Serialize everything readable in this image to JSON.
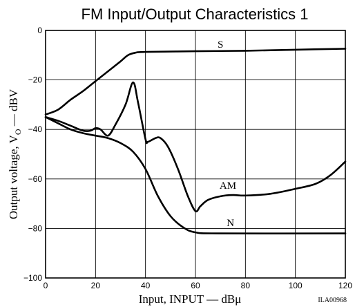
{
  "chart_data": {
    "type": "line",
    "title": "FM Input/Output Characteristics 1",
    "xlabel": "Input, INPUT — dBμ",
    "ylabel_main": "Output voltage, V",
    "ylabel_sub": "O",
    "ylabel_unit": " — dBV",
    "xlim": [
      0,
      120
    ],
    "ylim": [
      -100,
      0
    ],
    "x_ticks": [
      0,
      20,
      40,
      60,
      80,
      100,
      120
    ],
    "y_ticks": [
      0,
      -20,
      -40,
      -60,
      -80,
      -100
    ],
    "x_tick_labels": [
      "0",
      "20",
      "40",
      "60",
      "80",
      "100",
      "120"
    ],
    "y_tick_labels": [
      "0",
      "−20",
      "−40",
      "−60",
      "−80",
      "−100"
    ],
    "grid": true,
    "figure_id": "ILA00968",
    "series": [
      {
        "name": "S",
        "label_at": [
          70,
          -7
        ],
        "points": [
          [
            0,
            -34
          ],
          [
            5,
            -32
          ],
          [
            10,
            -28
          ],
          [
            15,
            -24.5
          ],
          [
            20,
            -20.5
          ],
          [
            25,
            -16.5
          ],
          [
            30,
            -12.5
          ],
          [
            33,
            -10
          ],
          [
            36,
            -9
          ],
          [
            40,
            -8.7
          ],
          [
            60,
            -8.4
          ],
          [
            80,
            -8.2
          ],
          [
            100,
            -7.8
          ],
          [
            120,
            -7.4
          ]
        ]
      },
      {
        "name": "AM",
        "label_at": [
          73,
          -64
        ],
        "points": [
          [
            0,
            -35
          ],
          [
            5,
            -36.5
          ],
          [
            10,
            -38.5
          ],
          [
            15,
            -40.5
          ],
          [
            18,
            -40.5
          ],
          [
            20,
            -39.5
          ],
          [
            22,
            -40
          ],
          [
            25,
            -42.5
          ],
          [
            28,
            -38
          ],
          [
            32,
            -30
          ],
          [
            35,
            -21
          ],
          [
            37,
            -29
          ],
          [
            40,
            -44
          ],
          [
            41,
            -45
          ],
          [
            44,
            -43.5
          ],
          [
            46,
            -43.5
          ],
          [
            49,
            -47
          ],
          [
            53,
            -56
          ],
          [
            57,
            -67
          ],
          [
            60,
            -73
          ],
          [
            62,
            -71
          ],
          [
            65,
            -68.5
          ],
          [
            70,
            -67
          ],
          [
            75,
            -66.5
          ],
          [
            80,
            -66.7
          ],
          [
            90,
            -66
          ],
          [
            100,
            -64
          ],
          [
            108,
            -62
          ],
          [
            114,
            -58.5
          ],
          [
            120,
            -53
          ]
        ]
      },
      {
        "name": "N",
        "label_at": [
          74,
          -79
        ],
        "points": [
          [
            0,
            -35
          ],
          [
            5,
            -37.5
          ],
          [
            10,
            -40
          ],
          [
            15,
            -41.5
          ],
          [
            20,
            -42.5
          ],
          [
            25,
            -43.5
          ],
          [
            30,
            -45.5
          ],
          [
            35,
            -49
          ],
          [
            40,
            -56
          ],
          [
            45,
            -67
          ],
          [
            50,
            -75
          ],
          [
            55,
            -79.5
          ],
          [
            60,
            -81.6
          ],
          [
            70,
            -82
          ],
          [
            120,
            -82
          ]
        ]
      }
    ]
  }
}
